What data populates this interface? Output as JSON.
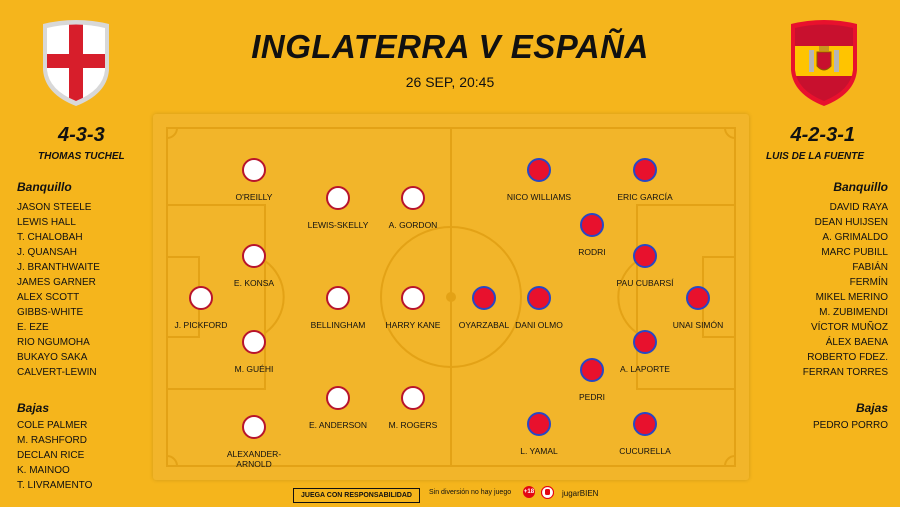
{
  "title": "INGLATERRA V ESPAÑA",
  "datetime": "26 SEP, 20:45",
  "england": {
    "formation": "4-3-3",
    "coach": "THOMAS TUCHEL",
    "bench_label": "Banquillo",
    "bench": [
      "JASON STEELE",
      "LEWIS HALL",
      "T. CHALOBAH",
      "J. QUANSAH",
      "J. BRANTHWAITE",
      "JAMES GARNER",
      "ALEX SCOTT",
      "GIBBS-WHITE",
      "E. EZE",
      "RIO NGUMOHA",
      "BUKAYO SAKA",
      "CALVERT-LEWIN"
    ],
    "absences_label": "Bajas",
    "absences": [
      "COLE PALMER",
      "M. RASHFORD",
      "DECLAN RICE",
      "K. MAINOO",
      "T. LIVRAMENTO"
    ],
    "players": [
      "J. PICKFORD",
      "O'REILLY",
      "E. KONSA",
      "M. GUÉHI",
      "ALEXANDER-ARNOLD",
      "LEWIS-SKELLY",
      "BELLINGHAM",
      "E. ANDERSON",
      "A. GORDON",
      "HARRY KANE",
      "M. ROGERS"
    ]
  },
  "spain": {
    "formation": "4-2-3-1",
    "coach": "LUIS DE LA FUENTE",
    "bench_label": "Banquillo",
    "bench": [
      "DAVID RAYA",
      "DEAN HUIJSEN",
      "A. GRIMALDO",
      "MARC PUBILL",
      "FABIÁN",
      "FERMÍN",
      "MIKEL MERINO",
      "M. ZUBIMENDI",
      "VÍCTOR MUÑOZ",
      "ÁLEX BAENA",
      "ROBERTO FDEZ.",
      "FERRAN TORRES"
    ],
    "absences_label": "Bajas",
    "absences": [
      "PEDRO PORRO"
    ],
    "players": [
      "UNAI SIMÓN",
      "ERIC GARCÍA",
      "PAU CUBARSÍ",
      "A. LAPORTE",
      "CUCURELLA",
      "RODRI",
      "PEDRI",
      "NICO WILLIAMS",
      "DANI OLMO",
      "L. YAMAL",
      "OYARZABAL"
    ]
  },
  "footer": {
    "responsible": "JUEGA CON RESPONSABILIDAD",
    "slogan": "Sin diversión no hay juego",
    "age": "+18",
    "brand": "jugarBIEN"
  },
  "colors": {
    "background": "#F5B51C",
    "england_ring": "#B8142C",
    "spain_fill": "#E8112D",
    "spain_ring": "#2847C5"
  }
}
